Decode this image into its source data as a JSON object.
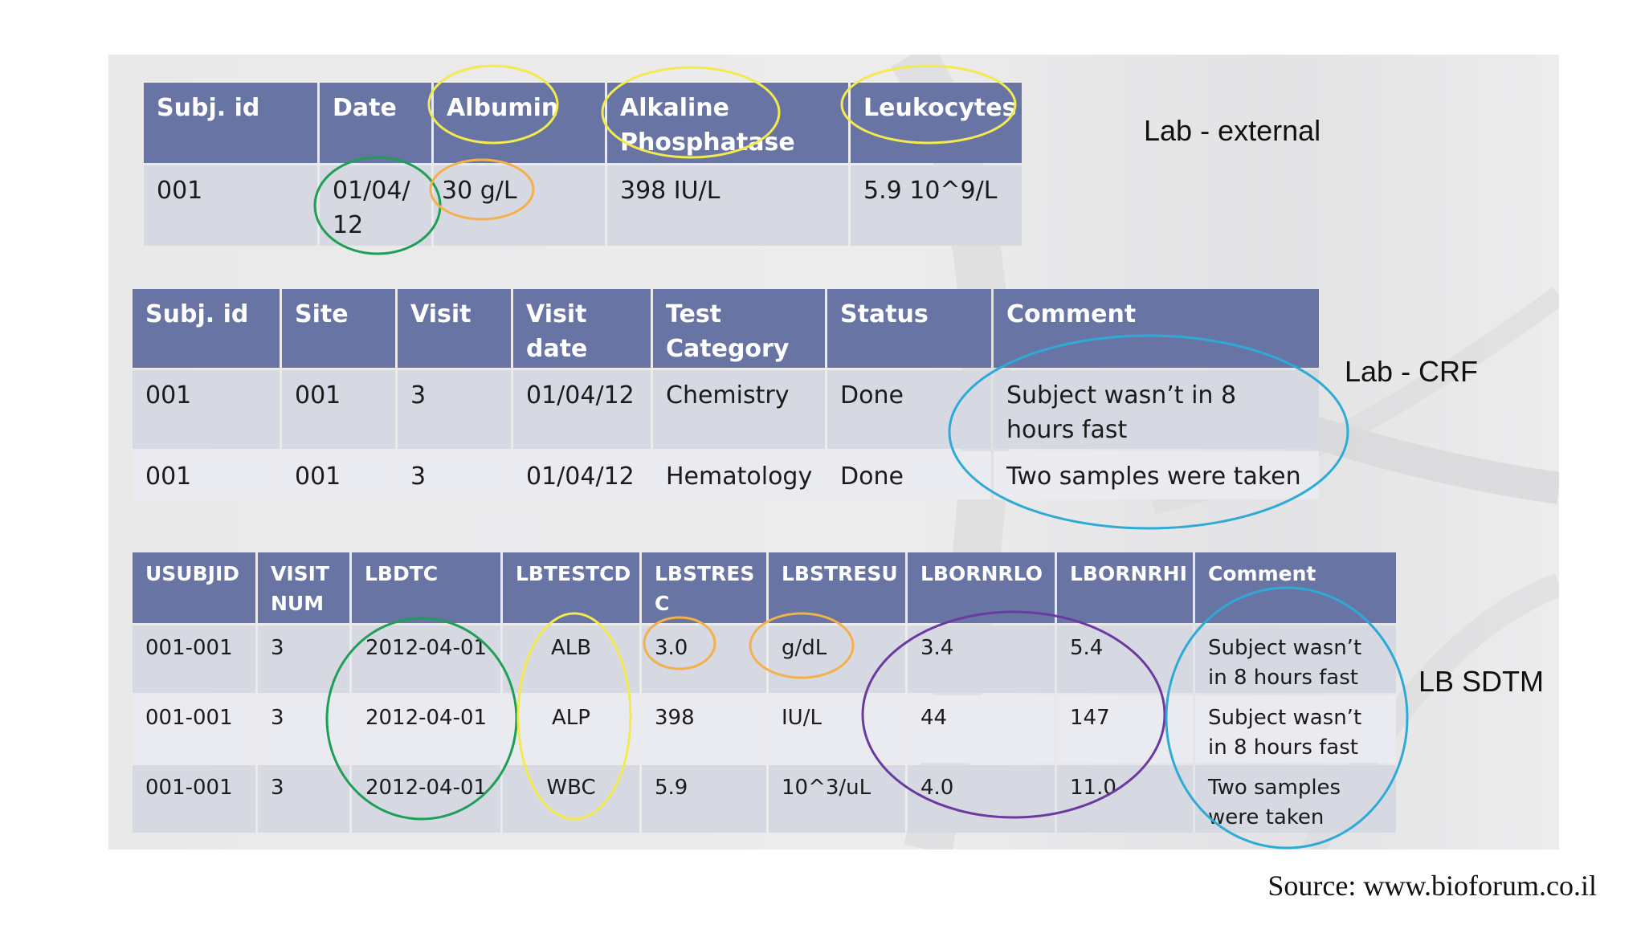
{
  "tables": {
    "lab_external": {
      "label": "Lab - external",
      "headers": [
        "Subj. id",
        "Date",
        "Albumin",
        "Alkaline Phosphatase",
        "Leukocytes"
      ],
      "rows": [
        [
          "001",
          "01/04/ 12",
          "30 g/L",
          "398 IU/L",
          "5.9 10^9/L"
        ]
      ]
    },
    "lab_crf": {
      "label": "Lab - CRF",
      "headers": [
        "Subj. id",
        "Site",
        "Visit",
        "Visit date",
        "Test Category",
        "Status",
        "Comment"
      ],
      "rows": [
        [
          "001",
          "001",
          "3",
          "01/04/12",
          "Chemistry",
          "Done",
          "Subject wasn’t in 8 hours fast"
        ],
        [
          "001",
          "001",
          "3",
          "01/04/12",
          "Hematology",
          "Done",
          "Two samples were taken"
        ]
      ]
    },
    "lb_sdtm": {
      "label": "LB SDTM",
      "headers": [
        "USUBJID",
        "VISIT NUM",
        "LBDTC",
        "LBTESTCD",
        "LBSTRES C",
        "LBSTRESU",
        "LBORNRLO",
        "LBORNRHI",
        "Comment"
      ],
      "rows": [
        [
          "001-001",
          "3",
          "2012-04-01",
          "ALB",
          "3.0",
          "g/dL",
          "3.4",
          "5.4",
          "Subject wasn’t in 8 hours fast"
        ],
        [
          "001-001",
          "3",
          "2012-04-01",
          "ALP",
          "398",
          "IU/L",
          "44",
          "147",
          "Subject wasn’t in 8 hours fast"
        ],
        [
          "001-001",
          "3",
          "2012-04-01",
          "WBC",
          "5.9",
          "10^3/uL",
          "4.0",
          "11.0",
          "Two samples were taken"
        ]
      ]
    }
  },
  "source": "Source: www.bioforum.co.il",
  "colors": {
    "header_bg": "#6874a4",
    "row_dark": "#d6d8e2",
    "row_light": "#eaebf0",
    "circle_yellow": "#f2ea4e",
    "circle_orange": "#f4b04a",
    "circle_green": "#1f9e55",
    "circle_blue": "#2eaad6",
    "circle_purple": "#6a3aa0"
  }
}
